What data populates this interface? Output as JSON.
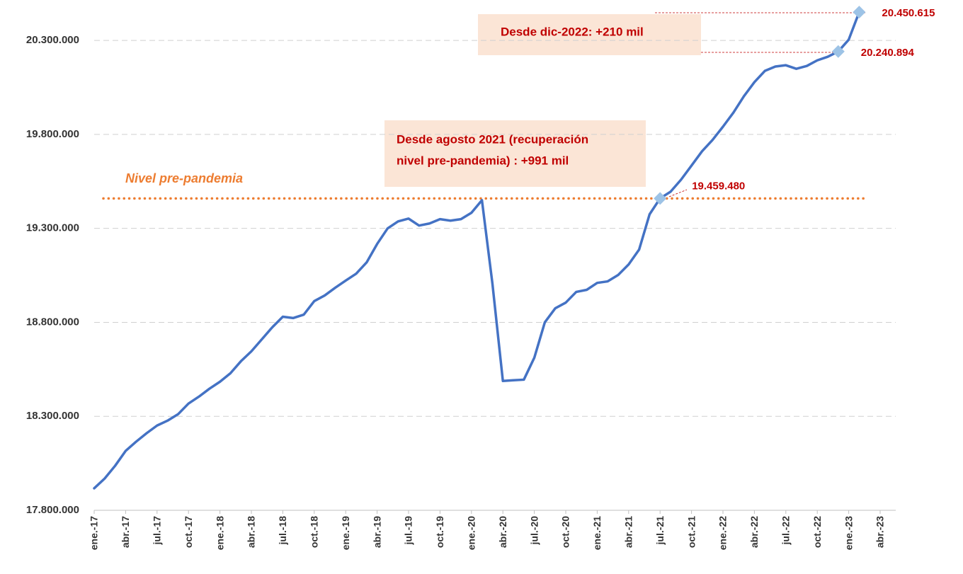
{
  "chart_data": {
    "type": "line",
    "categories": [
      "ene.-17",
      null,
      null,
      "abr.-17",
      null,
      null,
      "jul.-17",
      null,
      null,
      "oct.-17",
      null,
      null,
      "ene.-18",
      null,
      null,
      "abr.-18",
      null,
      null,
      "jul.-18",
      null,
      null,
      "oct.-18",
      null,
      null,
      "ene.-19",
      null,
      null,
      "abr.-19",
      null,
      null,
      "jul.-19",
      null,
      null,
      "oct.-19",
      null,
      null,
      "ene.-20",
      null,
      null,
      "abr.-20",
      null,
      null,
      "jul.-20",
      null,
      null,
      "oct.-20",
      null,
      null,
      "ene.-21",
      null,
      null,
      "abr.-21",
      null,
      null,
      "jul.-21",
      null,
      null,
      "oct.-21",
      null,
      null,
      "ene.-22",
      null,
      null,
      "abr.-22",
      null,
      null,
      "jul.-22",
      null,
      null,
      "oct.-22",
      null,
      null,
      "ene.-23",
      null,
      null,
      "abr.-23"
    ],
    "series": [
      {
        "color": "#4472c4",
        "values": [
          17917000,
          17969000,
          18037000,
          18116000,
          18165000,
          18210000,
          18251000,
          18277000,
          18311000,
          18368000,
          18405000,
          18447000,
          18484000,
          18529000,
          18593000,
          18646000,
          18710000,
          18774000,
          18830000,
          18823000,
          18841000,
          18913000,
          18943000,
          18984000,
          19022000,
          19059000,
          19119000,
          19217000,
          19300000,
          19337000,
          19352000,
          19315000,
          19326000,
          19349000,
          19341000,
          19349000,
          19383000,
          19450000,
          19007000,
          18488000,
          18492000,
          18495000,
          18612000,
          18800000,
          18875000,
          18905000,
          18962000,
          18973000,
          19010000,
          19018000,
          19052000,
          19108000,
          19187000,
          19375000,
          19459480,
          19495000,
          19559000,
          19634000,
          19710000,
          19770000,
          19841000,
          19916000,
          20003000,
          20078000,
          20138000,
          20161000,
          20168000,
          20149000,
          20164000,
          20194000,
          20213000,
          20240894,
          20304000,
          20450615,
          null,
          null
        ],
        "value_labels": [
          null,
          null,
          null,
          null,
          null,
          null,
          null,
          null,
          null,
          null,
          null,
          null,
          null,
          null,
          null,
          null,
          null,
          null,
          null,
          null,
          null,
          null,
          null,
          null,
          null,
          null,
          null,
          null,
          null,
          null,
          null,
          null,
          null,
          null,
          null,
          null,
          null,
          null,
          null,
          null,
          null,
          null,
          null,
          null,
          null,
          null,
          null,
          null,
          null,
          null,
          null,
          null,
          null,
          null,
          "19.459.480",
          null,
          null,
          null,
          null,
          null,
          null,
          null,
          null,
          null,
          null,
          null,
          null,
          null,
          null,
          null,
          null,
          "20.240.894",
          null,
          "20.450.615",
          null,
          null
        ]
      }
    ],
    "ylim": [
      17800000,
      20500000
    ],
    "yticks": [
      {
        "value": 17800000,
        "label": "17.800.000"
      },
      {
        "value": 18300000,
        "label": "18.300.000"
      },
      {
        "value": 18800000,
        "label": "18.800.000"
      },
      {
        "value": 19300000,
        "label": "19.300.000"
      },
      {
        "value": 19800000,
        "label": "19.800.000"
      },
      {
        "value": 20300000,
        "label": "20.300.000"
      }
    ],
    "grid": true,
    "reference_line": {
      "label": "Nivel pre-pandemia",
      "value": 19459480,
      "color": "#ed7d31"
    },
    "annotations": [
      {
        "lines": [
          "Desde dic-2022: +210 mil"
        ]
      },
      {
        "lines": [
          "Desde agosto 2021 (recuperación",
          "nivel pre-pandemia) : +991 mil"
        ]
      }
    ]
  }
}
